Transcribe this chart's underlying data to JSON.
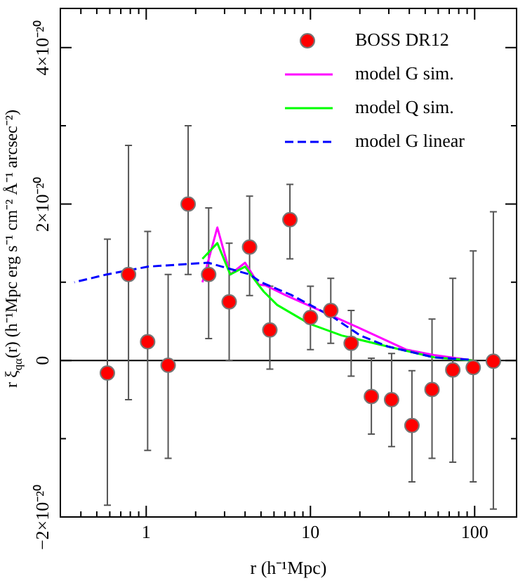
{
  "chart_data": {
    "type": "scatter",
    "xlabel": "r (h⁻¹Mpc)",
    "ylabel": "r ξ$_{qα}$(r) (h⁻¹Mpc erg s⁻¹ cm⁻² Å⁻¹ arcsec⁻²)",
    "log": "x",
    "legend": "top right",
    "xlim": [
      0.3,
      180
    ],
    "ylim": [
      -2e-20,
      4.5e-20
    ],
    "xticks": [
      {
        "value": 0.3,
        "label": null
      },
      {
        "value": 0.4,
        "label": null
      },
      {
        "value": 0.5,
        "label": null
      },
      {
        "value": 0.6,
        "label": null
      },
      {
        "value": 0.7,
        "label": null
      },
      {
        "value": 0.8,
        "label": null
      },
      {
        "value": 0.9,
        "label": null
      },
      1,
      {
        "value": 2,
        "label": null
      },
      {
        "value": 3,
        "label": null
      },
      {
        "value": 4,
        "label": null
      },
      {
        "value": 5,
        "label": null
      },
      {
        "value": 6,
        "label": null
      },
      {
        "value": 7,
        "label": null
      },
      {
        "value": 8,
        "label": null
      },
      {
        "value": 9,
        "label": null
      },
      10,
      {
        "value": 20,
        "label": null
      },
      {
        "value": 30,
        "label": null
      },
      {
        "value": 40,
        "label": null
      },
      {
        "value": 50,
        "label": null
      },
      {
        "value": 60,
        "label": null
      },
      {
        "value": 70,
        "label": null
      },
      {
        "value": 80,
        "label": null
      },
      {
        "value": 90,
        "label": null
      },
      100
    ],
    "yticks": [
      {
        "value": -2e-20,
        "label": "−2×10⁻²⁰"
      },
      {
        "value": -1e-20,
        "label": null
      },
      {
        "value": 0,
        "label": "0"
      },
      {
        "value": 1e-20,
        "label": null
      },
      {
        "value": 2e-20,
        "label": "2×10⁻²⁰"
      },
      {
        "value": 3e-20,
        "label": null
      },
      {
        "value": 4e-20,
        "label": "4×10⁻²⁰"
      }
    ],
    "ref_lines": [
      {
        "axis": "y",
        "value": 0,
        "color": "#000000"
      }
    ],
    "series": [
      {
        "name": "BOSS DR12",
        "marker": "circle",
        "color": "#ff0000",
        "x": [
          0.58,
          0.78,
          1.02,
          1.36,
          1.8,
          2.4,
          3.2,
          4.26,
          5.66,
          7.5,
          10.0,
          13.3,
          17.7,
          23.5,
          31.2,
          41.5,
          55,
          73.6,
          98,
          130
        ],
        "values": [
          -1.6e-21,
          1.1e-20,
          2.4e-21,
          -6e-22,
          2e-20,
          1.1e-20,
          7.5e-21,
          1.45e-20,
          3.9e-21,
          1.8e-20,
          5.5e-21,
          6.4e-21,
          2.2e-21,
          -4.6e-21,
          -5e-21,
          -8.3e-21,
          -3.7e-21,
          -1.2e-21,
          -9e-22,
          -1e-22
        ],
        "errors": [
          [
            -1.85e-20,
            1.55e-20
          ],
          [
            -5e-21,
            2.75e-20
          ],
          [
            -1.15e-20,
            1.65e-20
          ],
          [
            -1.25e-20,
            1.1e-20
          ],
          [
            1.1e-20,
            3e-20
          ],
          [
            2.8e-21,
            1.95e-20
          ],
          [
            0,
            1.5e-20
          ],
          [
            8.3e-21,
            2.1e-20
          ],
          [
            -1.1e-21,
            9.5e-21
          ],
          [
            1.3e-20,
            2.25e-20
          ],
          [
            1.4e-21,
            9.5e-21
          ],
          [
            2.2e-21,
            1.05e-20
          ],
          [
            -2e-21,
            6.4e-21
          ],
          [
            -9.4e-21,
            3e-22
          ],
          [
            -1.1e-20,
            9e-22
          ],
          [
            -1.55e-20,
            -1.3e-21
          ],
          [
            -1.25e-20,
            5.3e-21
          ],
          [
            -1.3e-20,
            1.05e-20
          ],
          [
            -1.55e-20,
            1.4e-20
          ],
          [
            -1.9e-20,
            1.9e-20
          ]
        ]
      },
      {
        "name": "model G sim.",
        "type": "line",
        "marker": "none",
        "color": "#ff00ff",
        "x": [
          2.2,
          2.71,
          3.25,
          4.0,
          4.85,
          5.34,
          7.15,
          12.0,
          20.1,
          38.2,
          56.6,
          98
        ],
        "values": [
          1e-20,
          1.7e-20,
          1.1e-20,
          1.25e-20,
          9.7e-21,
          9.6e-21,
          8.3e-21,
          6.2e-21,
          4.1e-21,
          1.4e-21,
          7e-22,
          0
        ]
      },
      {
        "name": "model Q sim.",
        "type": "line",
        "marker": "none",
        "color": "#00ff00",
        "x": [
          2.2,
          2.71,
          3.25,
          4.0,
          4.85,
          5.2,
          6.27,
          9.85,
          15.5,
          29.5,
          56.6,
          98
        ],
        "values": [
          1.3e-20,
          1.5e-20,
          1.1e-20,
          1.2e-20,
          9.6e-21,
          8.8e-21,
          7.1e-21,
          4.7e-21,
          3.2e-21,
          1.8e-21,
          4e-22,
          0
        ]
      },
      {
        "name": "model G linear",
        "type": "line",
        "marker": "none",
        "line_style": "dashed",
        "color": "#0000ff",
        "x": [
          0.365,
          0.575,
          1.03,
          2.38,
          4.26,
          5.0,
          7.6,
          13.6,
          20.1,
          29.5,
          56.6,
          92
        ],
        "values": [
          1e-20,
          1.1e-20,
          1.2e-20,
          1.25e-20,
          1.1e-20,
          1e-20,
          8.4e-21,
          5.6e-21,
          3.2e-21,
          1.8e-21,
          4e-22,
          1e-22
        ]
      }
    ]
  }
}
